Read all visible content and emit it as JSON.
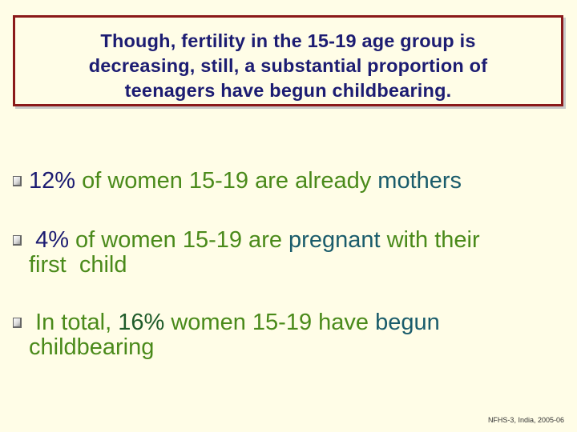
{
  "title": {
    "line1": "Though, fertility in the 15-19 age group is",
    "line2": "decreasing, still, a substantial proportion of",
    "line3": "teenagers have begun childbearing."
  },
  "bullets": [
    {
      "stat": "12%",
      "mid": "of women 15-19 are already",
      "keyword": "mothers"
    },
    {
      "stat": "4%",
      "mid": "of women 15-19 are",
      "keyword": "pregnant",
      "tail": "with their",
      "line2": "first  child"
    },
    {
      "lead": "In total,",
      "stat": "16%",
      "mid": "women 15-19 have",
      "keyword": "begun",
      "line2": "childbearing"
    }
  ],
  "footnote": "NFHS-3, India, 2005-06",
  "colors": {
    "background": "#fffde7",
    "title_text": "#1c1c72",
    "title_border": "#8b1a1a",
    "body_text": "#4a8a1a",
    "keyword": "#1a5c6b"
  }
}
